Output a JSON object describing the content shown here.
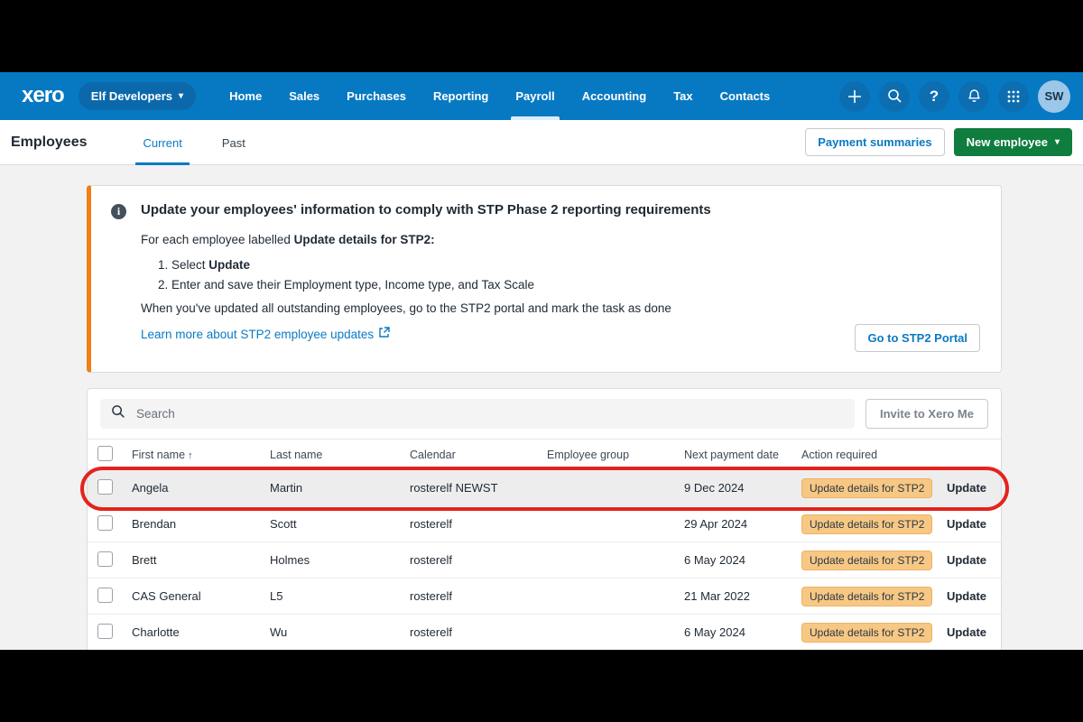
{
  "navbar": {
    "logo": "xero",
    "org_name": "Elf Developers",
    "items": [
      "Home",
      "Sales",
      "Purchases",
      "Reporting",
      "Payroll",
      "Accounting",
      "Tax",
      "Contacts"
    ],
    "active_item": "Payroll",
    "right_icons": [
      "plus-icon",
      "search-icon",
      "help-icon",
      "bell-icon",
      "apps-grid-icon"
    ],
    "help_glyph": "?",
    "avatar_initials": "SW"
  },
  "header": {
    "title": "Employees",
    "tabs": [
      {
        "label": "Current",
        "active": true
      },
      {
        "label": "Past",
        "active": false
      }
    ],
    "payment_summaries_label": "Payment summaries",
    "new_employee_label": "New employee"
  },
  "stp_notice": {
    "title": "Update your employees' information to comply with STP Phase 2 reporting requirements",
    "intro_prefix": "For each employee labelled ",
    "intro_bold": "Update details for STP2:",
    "step1_prefix": "Select ",
    "step1_bold": "Update",
    "step2": "Enter and save their Employment type, Income type, and Tax Scale",
    "footer": "When you've updated all outstanding employees, go to the STP2 portal and mark the task as done",
    "link_label": "Learn more about STP2 employee updates",
    "portal_button_label": "Go to STP2 Portal"
  },
  "table": {
    "search_placeholder": "Search",
    "invite_button_label": "Invite to Xero Me",
    "columns": [
      "First name",
      "Last name",
      "Calendar",
      "Employee group",
      "Next payment date",
      "Action required"
    ],
    "sorted_column": "First name",
    "sort_direction": "ascending",
    "badge_label": "Update details for STP2",
    "update_label": "Update",
    "rows": [
      {
        "first_name": "Angela",
        "last_name": "Martin",
        "calendar": "rosterelf NEWST",
        "employee_group": "",
        "next_payment_date": "9 Dec 2024",
        "action_required": "Update details for STP2",
        "action_link": "Update",
        "highlighted": true
      },
      {
        "first_name": "Brendan",
        "last_name": "Scott",
        "calendar": "rosterelf",
        "employee_group": "",
        "next_payment_date": "29 Apr 2024",
        "action_required": "Update details for STP2",
        "action_link": "Update",
        "highlighted": false
      },
      {
        "first_name": "Brett",
        "last_name": "Holmes",
        "calendar": "rosterelf",
        "employee_group": "",
        "next_payment_date": "6 May 2024",
        "action_required": "Update details for STP2",
        "action_link": "Update",
        "highlighted": false
      },
      {
        "first_name": "CAS General",
        "last_name": "L5",
        "calendar": "rosterelf",
        "employee_group": "",
        "next_payment_date": "21 Mar 2022",
        "action_required": "Update details for STP2",
        "action_link": "Update",
        "highlighted": false
      },
      {
        "first_name": "Charlotte",
        "last_name": "Wu",
        "calendar": "rosterelf",
        "employee_group": "",
        "next_payment_date": "6 May 2024",
        "action_required": "Update details for STP2",
        "action_link": "Update",
        "highlighted": false
      }
    ]
  },
  "colors": {
    "navbar_blue": "#0779c2",
    "accent_blue": "#0a7ac2",
    "green_button": "#0e7d3e",
    "notice_border_orange": "#ef7f18",
    "badge_orange": "#f7c884",
    "annotation_red": "#e3241c",
    "page_background": "#f2f2f3"
  }
}
